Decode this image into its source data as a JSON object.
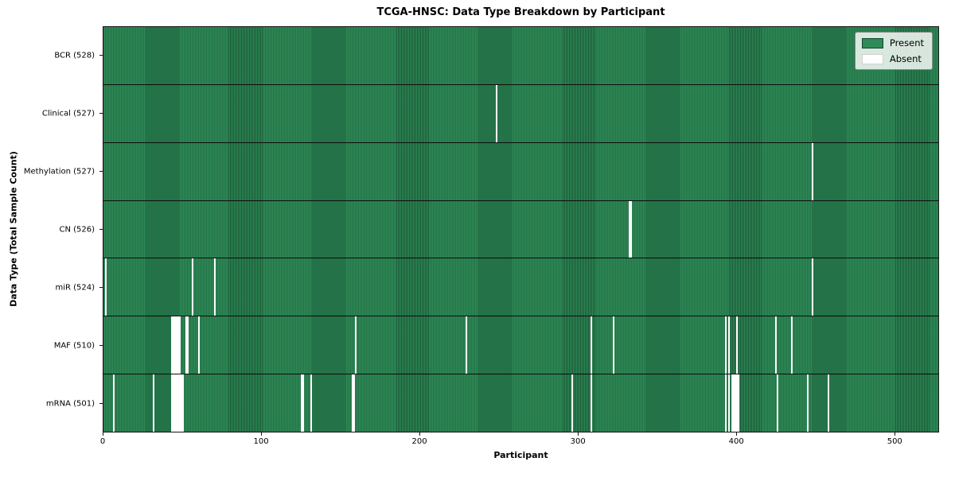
{
  "title": "TCGA-HNSC: Data Type Breakdown by Participant",
  "xlabel": "Participant",
  "ylabel": "Data Type (Total Sample Count)",
  "legend": {
    "present_label": "Present",
    "absent_label": "Absent",
    "position": "upper right"
  },
  "colors": {
    "present": "#2e8b57",
    "present_edge": "#14402a",
    "absent": "#ffffff",
    "row_separator": "#0d0d0d"
  },
  "chart_data": {
    "type": "heatmap",
    "title": "TCGA-HNSC: Data Type Breakdown by Participant",
    "xlabel": "Participant",
    "ylabel": "Data Type (Total Sample Count)",
    "n_participants": 528,
    "x_range": [
      0,
      528
    ],
    "x_ticks": [
      0,
      100,
      200,
      300,
      400,
      500
    ],
    "grid": false,
    "legend_position": "upper right",
    "legend_entries": [
      "Present",
      "Absent"
    ],
    "rows": [
      {
        "label": "BCR (528)",
        "key": "bcr",
        "total": 528,
        "absent_participants": []
      },
      {
        "label": "Clinical (527)",
        "key": "clinical",
        "total": 527,
        "absent_participants": [
          248
        ]
      },
      {
        "label": "Methylation (527)",
        "key": "methylation",
        "total": 527,
        "absent_participants": [
          448
        ]
      },
      {
        "label": "CN (526)",
        "key": "cn",
        "total": 526,
        "absent_participants": [
          332,
          333
        ]
      },
      {
        "label": "miR (524)",
        "key": "mir",
        "total": 524,
        "absent_participants": [
          1,
          56,
          70,
          448
        ]
      },
      {
        "label": "MAF (510)",
        "key": "maf",
        "total": 510,
        "absent_participants": [
          43,
          44,
          45,
          46,
          47,
          48,
          52,
          53,
          60,
          159,
          229,
          308,
          322,
          393,
          395,
          400,
          425,
          435
        ]
      },
      {
        "label": "mRNA (501)",
        "key": "mrna",
        "total": 501,
        "absent_participants": [
          6,
          31,
          43,
          44,
          45,
          46,
          47,
          48,
          49,
          50,
          125,
          126,
          131,
          157,
          158,
          296,
          308,
          393,
          395,
          397,
          398,
          399,
          400,
          401,
          426,
          445,
          458
        ]
      }
    ]
  }
}
